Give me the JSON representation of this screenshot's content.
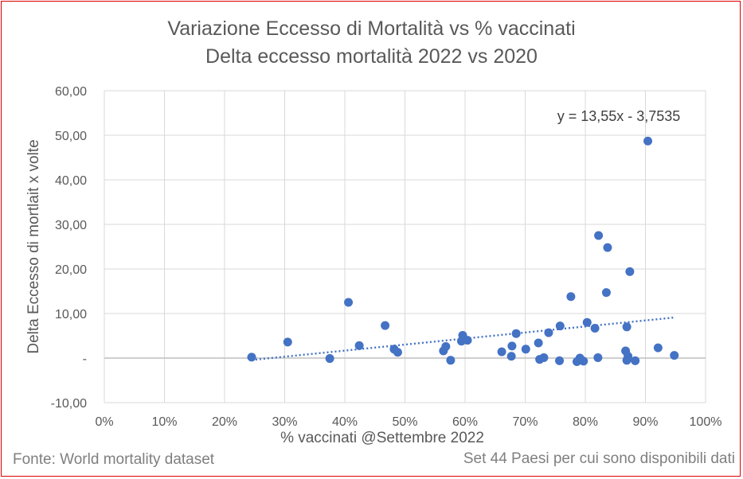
{
  "chart_data": {
    "type": "scatter",
    "title": "Variazione  Eccesso di Mortalità vs % vaccinati",
    "subtitle": "Delta eccesso  mortalità 2022 vs 2020",
    "xlabel": "% vaccinati @Settembre 2022",
    "ylabel": "Delta Eccesso di mortlait x volte",
    "xlim": [
      0,
      1
    ],
    "ylim": [
      -10,
      60
    ],
    "x_ticks": [
      0,
      0.1,
      0.2,
      0.3,
      0.4,
      0.5,
      0.6,
      0.7,
      0.8,
      0.9,
      1.0
    ],
    "x_tick_labels": [
      "0%",
      "10%",
      "20%",
      "30%",
      "40%",
      "50%",
      "60%",
      "70%",
      "80%",
      "90%",
      "100%"
    ],
    "y_ticks": [
      -10,
      0,
      10,
      20,
      30,
      40,
      50,
      60
    ],
    "y_tick_labels": [
      "-10,00",
      "-",
      "10,00",
      "20,00",
      "30,00",
      "40,00",
      "50,00",
      "60,00"
    ],
    "grid": true,
    "point_color": "#4472c4",
    "trendline": {
      "type": "linear",
      "slope": 13.55,
      "intercept": -3.7535,
      "x_range": [
        0.245,
        0.948
      ],
      "label": "y = 13,55x - 3,7535",
      "color": "#4472c4"
    },
    "series": [
      {
        "points": [
          {
            "x": 0.245,
            "y": 0.2
          },
          {
            "x": 0.305,
            "y": 3.6
          },
          {
            "x": 0.375,
            "y": -0.1
          },
          {
            "x": 0.406,
            "y": 12.5
          },
          {
            "x": 0.424,
            "y": 2.8
          },
          {
            "x": 0.467,
            "y": 7.3
          },
          {
            "x": 0.482,
            "y": 2.0
          },
          {
            "x": 0.488,
            "y": 1.3
          },
          {
            "x": 0.564,
            "y": 1.6
          },
          {
            "x": 0.568,
            "y": 2.6
          },
          {
            "x": 0.576,
            "y": -0.5
          },
          {
            "x": 0.594,
            "y": 3.8
          },
          {
            "x": 0.596,
            "y": 5.1
          },
          {
            "x": 0.604,
            "y": 4.0
          },
          {
            "x": 0.661,
            "y": 1.4
          },
          {
            "x": 0.677,
            "y": 0.4
          },
          {
            "x": 0.678,
            "y": 2.7
          },
          {
            "x": 0.685,
            "y": 5.5
          },
          {
            "x": 0.701,
            "y": 2.0
          },
          {
            "x": 0.722,
            "y": 3.4
          },
          {
            "x": 0.724,
            "y": -0.3
          },
          {
            "x": 0.731,
            "y": 0.1
          },
          {
            "x": 0.739,
            "y": 5.7
          },
          {
            "x": 0.757,
            "y": -0.6
          },
          {
            "x": 0.758,
            "y": 7.2
          },
          {
            "x": 0.776,
            "y": 13.8
          },
          {
            "x": 0.786,
            "y": -0.8
          },
          {
            "x": 0.791,
            "y": 0.0
          },
          {
            "x": 0.797,
            "y": -0.7
          },
          {
            "x": 0.803,
            "y": 8.0
          },
          {
            "x": 0.816,
            "y": 6.7
          },
          {
            "x": 0.821,
            "y": 0.1
          },
          {
            "x": 0.822,
            "y": 27.5
          },
          {
            "x": 0.835,
            "y": 14.7
          },
          {
            "x": 0.837,
            "y": 24.8
          },
          {
            "x": 0.867,
            "y": 1.6
          },
          {
            "x": 0.869,
            "y": 7.0
          },
          {
            "x": 0.869,
            "y": -0.5
          },
          {
            "x": 0.871,
            "y": 0.4
          },
          {
            "x": 0.874,
            "y": 19.4
          },
          {
            "x": 0.883,
            "y": -0.6
          },
          {
            "x": 0.904,
            "y": 48.7
          },
          {
            "x": 0.921,
            "y": 2.3
          },
          {
            "x": 0.948,
            "y": 0.6
          }
        ]
      }
    ]
  },
  "footer": {
    "source": "Fonte: World mortality dataset",
    "note": "Set 44 Paesi per cui sono disponibili dati"
  }
}
